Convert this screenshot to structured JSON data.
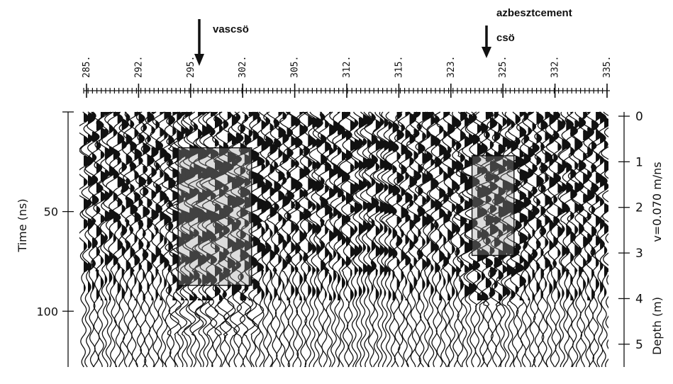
{
  "chart_data": {
    "type": "radargram",
    "annotations": [
      {
        "label_lines": [
          "vascsö"
        ],
        "x_position": 295
      },
      {
        "label_lines": [
          "azbesztcement",
          "csö"
        ],
        "x_position": 325
      }
    ],
    "top_axis": {
      "ticks": [
        "285.",
        "292.",
        "295.",
        "302.",
        "305.",
        "312.",
        "315.",
        "323.",
        "325.",
        "332.",
        "335."
      ]
    },
    "left_axis": {
      "label": "Time (ns)",
      "ticks": [
        {
          "label": "50",
          "value": 50
        },
        {
          "label": "100",
          "value": 100
        }
      ],
      "range": [
        0,
        128
      ]
    },
    "right_axis": {
      "label": "Depth (m)",
      "velocity_label": "v=0.070 m/ns",
      "ticks": [
        {
          "label": "0",
          "value": 0
        },
        {
          "label": "1",
          "value": 1
        },
        {
          "label": "2",
          "value": 2
        },
        {
          "label": "3",
          "value": 3
        },
        {
          "label": "4",
          "value": 4
        },
        {
          "label": "5",
          "value": 5
        }
      ],
      "range": [
        0,
        5.5
      ]
    },
    "anomalies": [
      {
        "name": "vascsö",
        "x_range": [
          294,
          301
        ],
        "time_range": [
          18,
          87
        ]
      },
      {
        "name": "azbesztcement csö",
        "x_range": [
          322,
          326
        ],
        "time_range": [
          22,
          72
        ]
      }
    ],
    "grid": false,
    "legend": "none"
  }
}
